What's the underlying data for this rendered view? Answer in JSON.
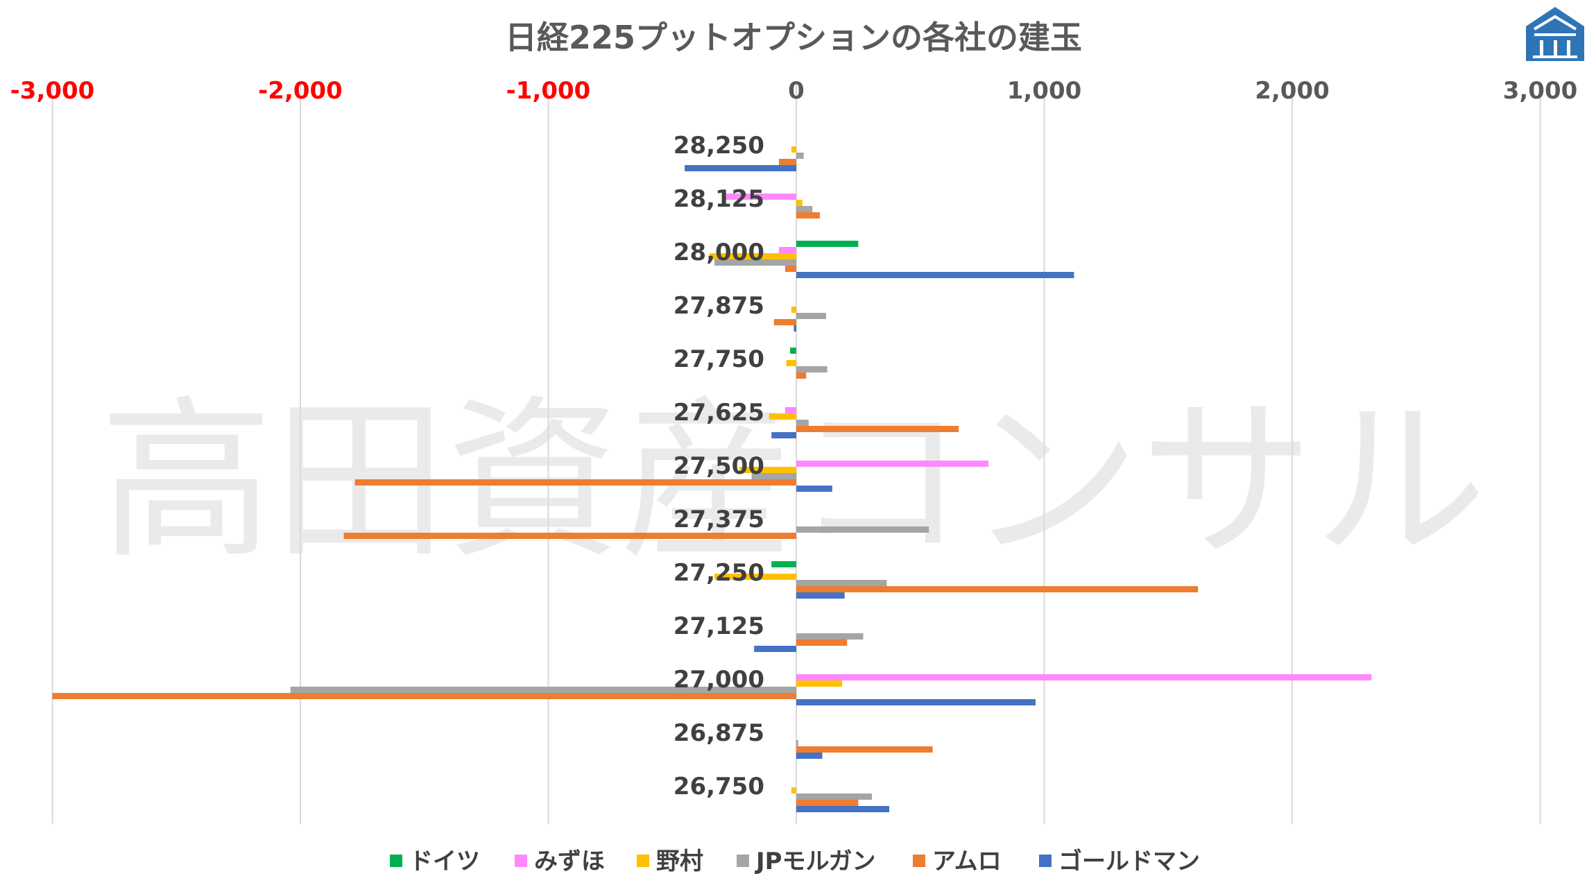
{
  "watermark": "高田資産コンサル",
  "logo": {
    "name": "building-logo-icon",
    "color": "#2e75b6"
  },
  "chart_data": {
    "type": "bar",
    "orientation": "horizontal",
    "title": "日経225プットオプションの各社の建玉",
    "xlim": [
      -3000,
      3000
    ],
    "x_ticks": [
      -3000,
      -2000,
      -1000,
      0,
      1000,
      2000,
      3000
    ],
    "x_tick_labels": [
      "-3,000",
      "-2,000",
      "-1,000",
      "0",
      "1,000",
      "2,000",
      "3,000"
    ],
    "negative_tick_color": "#ff0000",
    "grid": true,
    "legend_position": "bottom",
    "categories": [
      "28,250",
      "28,125",
      "28,000",
      "27,875",
      "27,750",
      "27,625",
      "27,500",
      "27,375",
      "27,250",
      "27,125",
      "27,000",
      "26,875",
      "26,750"
    ],
    "series": [
      {
        "name": "ドイツ",
        "color": "#00b050",
        "values": [
          0,
          0,
          250,
          0,
          -25,
          0,
          0,
          0,
          -100,
          0,
          0,
          0,
          0
        ]
      },
      {
        "name": "みずほ",
        "color": "#ff88ff",
        "values": [
          0,
          -290,
          -70,
          0,
          0,
          -45,
          775,
          0,
          0,
          0,
          2320,
          0,
          0
        ]
      },
      {
        "name": "野村",
        "color": "#ffc000",
        "values": [
          -20,
          25,
          -350,
          -20,
          -40,
          -110,
          -230,
          0,
          -330,
          0,
          185,
          0,
          -20
        ]
      },
      {
        "name": "JPモルガン",
        "color": "#a5a5a5",
        "values": [
          30,
          65,
          -330,
          120,
          125,
          50,
          -180,
          535,
          365,
          270,
          -2040,
          8,
          305
        ]
      },
      {
        "name": "アムロ",
        "color": "#ed7d31",
        "values": [
          -70,
          95,
          -45,
          -90,
          40,
          655,
          -1780,
          -1825,
          1620,
          205,
          -3000,
          550,
          250
        ]
      },
      {
        "name": "ゴールドマン",
        "color": "#4472c4",
        "values": [
          -450,
          0,
          1120,
          -10,
          0,
          -100,
          145,
          0,
          195,
          -170,
          965,
          105,
          375
        ]
      }
    ]
  }
}
